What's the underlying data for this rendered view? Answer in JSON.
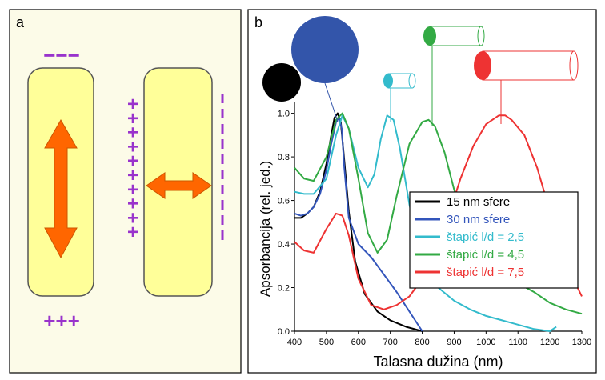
{
  "panel_a": {
    "label": "a",
    "top_charge": "−−−",
    "bottom_charge": "+++",
    "left_charge_column": "+",
    "right_charge_column": "|",
    "colors": {
      "rod_fill": "#ffff99",
      "arrow": "#ff6600",
      "charge": "#9933cc",
      "panel_bg": "#fcfbe8"
    }
  },
  "panel_b": {
    "label": "b",
    "chart_data": {
      "type": "line",
      "title": "",
      "xlabel": "Talasna dužina (nm)",
      "ylabel": "Apsorbancija (rel. jed.)",
      "xlim": [
        400,
        1300
      ],
      "ylim": [
        0,
        1.05
      ],
      "xticks": [
        "400",
        "500",
        "600",
        "700",
        "800",
        "900",
        "1000",
        "1100",
        "1200",
        "1300"
      ],
      "yticks": [
        "0.0",
        "0.2",
        "0.4",
        "0.6",
        "0.8",
        "1.0"
      ],
      "legend_position": "bottom-right",
      "series": [
        {
          "name": "15 nm sfere",
          "color": "#000000",
          "x": [
            400,
            420,
            440,
            460,
            480,
            500,
            515,
            525,
            535,
            545,
            555,
            570,
            590,
            620,
            660,
            700,
            750,
            800
          ],
          "y": [
            0.52,
            0.52,
            0.54,
            0.57,
            0.64,
            0.77,
            0.9,
            0.98,
            1.0,
            0.96,
            0.8,
            0.55,
            0.32,
            0.17,
            0.09,
            0.05,
            0.02,
            0.0
          ]
        },
        {
          "name": "30 nm sfere",
          "color": "#3355bb",
          "x": [
            400,
            420,
            440,
            460,
            480,
            500,
            515,
            530,
            540,
            548,
            556,
            570,
            600,
            640,
            680,
            720,
            760,
            800
          ],
          "y": [
            0.54,
            0.53,
            0.54,
            0.57,
            0.63,
            0.74,
            0.86,
            0.96,
            0.98,
            0.93,
            0.75,
            0.52,
            0.4,
            0.34,
            0.26,
            0.18,
            0.09,
            0.0
          ]
        },
        {
          "name": "štapić l/d = 2,5",
          "color": "#33bbcc",
          "x": [
            400,
            430,
            460,
            500,
            530,
            550,
            570,
            600,
            630,
            650,
            670,
            690,
            710,
            730,
            760,
            800,
            850,
            900,
            950,
            1000,
            1050,
            1100,
            1150,
            1200,
            1220
          ],
          "y": [
            0.64,
            0.63,
            0.63,
            0.7,
            0.9,
            0.99,
            0.93,
            0.75,
            0.66,
            0.72,
            0.88,
            0.99,
            0.97,
            0.84,
            0.58,
            0.33,
            0.2,
            0.14,
            0.1,
            0.07,
            0.05,
            0.03,
            0.01,
            0.0,
            0.02
          ]
        },
        {
          "name": "štapić l/d = 4,5",
          "color": "#33aa44",
          "x": [
            400,
            430,
            460,
            500,
            530,
            550,
            570,
            600,
            630,
            660,
            690,
            720,
            760,
            800,
            820,
            840,
            870,
            900,
            950,
            1000,
            1050,
            1100,
            1150,
            1200,
            1250,
            1300
          ],
          "y": [
            0.75,
            0.7,
            0.69,
            0.8,
            0.97,
            1.0,
            0.93,
            0.7,
            0.45,
            0.36,
            0.42,
            0.62,
            0.86,
            0.96,
            0.97,
            0.94,
            0.82,
            0.65,
            0.44,
            0.32,
            0.26,
            0.22,
            0.18,
            0.13,
            0.1,
            0.08
          ]
        },
        {
          "name": "štapić l/d = 7,5",
          "color": "#ee3333",
          "x": [
            400,
            430,
            460,
            500,
            530,
            550,
            570,
            600,
            640,
            680,
            720,
            760,
            800,
            840,
            880,
            920,
            960,
            1000,
            1040,
            1060,
            1080,
            1120,
            1160,
            1200,
            1240,
            1280,
            1300
          ],
          "y": [
            0.41,
            0.37,
            0.36,
            0.47,
            0.54,
            0.53,
            0.44,
            0.24,
            0.12,
            0.1,
            0.12,
            0.16,
            0.24,
            0.36,
            0.52,
            0.7,
            0.85,
            0.95,
            0.99,
            0.99,
            0.97,
            0.9,
            0.75,
            0.55,
            0.38,
            0.22,
            0.16
          ]
        }
      ],
      "annotations": [
        {
          "shape": "sphere-large",
          "color": "#3355aa"
        },
        {
          "shape": "sphere-small",
          "color": "#000000"
        },
        {
          "shape": "rod-short",
          "color": "#33bbcc"
        },
        {
          "shape": "rod-medium",
          "color": "#33aa44"
        },
        {
          "shape": "rod-long",
          "color": "#ee3333"
        }
      ]
    }
  }
}
